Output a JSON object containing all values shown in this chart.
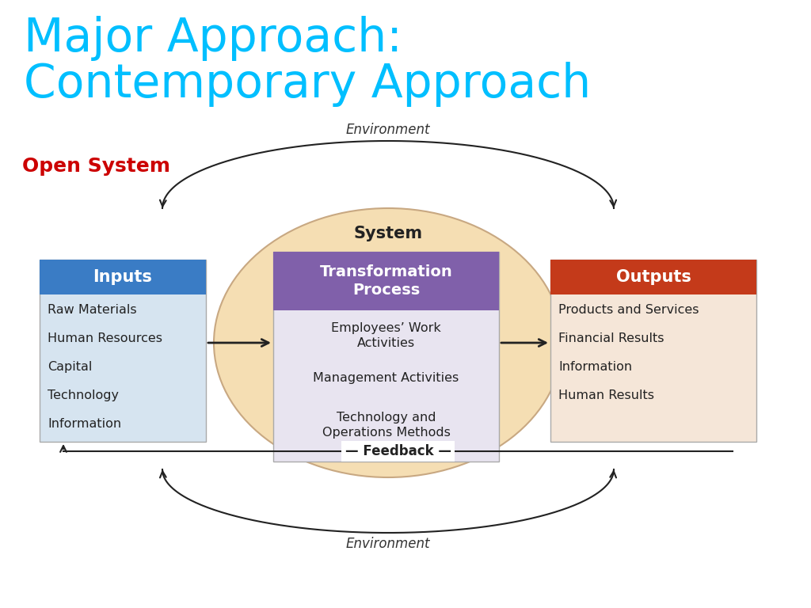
{
  "title_line1": "Major Approach:",
  "title_line2": "Contemporary Approach",
  "title_color": "#00BFFF",
  "open_system_text": "Open System",
  "open_system_color": "#CC0000",
  "system_label": "System",
  "environment_label": "Environment",
  "feedback_label": "— Feedback —",
  "ellipse_color": "#F5DEB3",
  "ellipse_edge_color": "#C8A882",
  "inputs_header": "Inputs",
  "inputs_header_bg": "#3A7CC5",
  "inputs_header_text_color": "#FFFFFF",
  "inputs_box_bg": "#D6E4F0",
  "inputs_items": [
    "Raw Materials",
    "Human Resources",
    "Capital",
    "Technology",
    "Information"
  ],
  "transform_header": "Transformation\nProcess",
  "transform_header_bg": "#8060AA",
  "transform_header_text_color": "#FFFFFF",
  "transform_box_bg": "#E8E4F0",
  "transform_items": [
    "Employees’ Work\nActivities",
    "Management Activities",
    "Technology and\nOperations Methods"
  ],
  "outputs_header": "Outputs",
  "outputs_header_bg": "#C43A1A",
  "outputs_header_text_color": "#FFFFFF",
  "outputs_box_bg": "#F5E6D8",
  "outputs_items": [
    "Products and Services",
    "Financial Results",
    "Information",
    "Human Results"
  ],
  "bg_color": "#FFFFFF",
  "arrow_color": "#222222",
  "feedback_line_color": "#222222"
}
